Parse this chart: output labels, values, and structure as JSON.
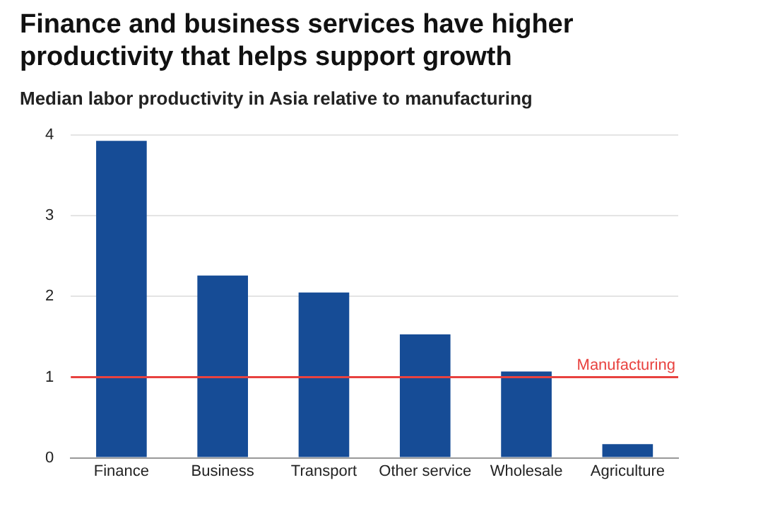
{
  "chart_data": {
    "type": "bar",
    "title": "Finance and business services have higher productivity that helps support growth",
    "subtitle": "Median labor productivity in Asia relative to manufacturing",
    "categories": [
      "Finance",
      "Business",
      "Transport",
      "Other service",
      "Wholesale",
      "Agriculture"
    ],
    "values": [
      3.93,
      2.26,
      2.05,
      1.53,
      1.07,
      0.17
    ],
    "color": "#164c96",
    "ylim": [
      0,
      4
    ],
    "yticks": [
      0,
      1,
      2,
      3,
      4
    ],
    "grid": "y",
    "ref_lines": [
      {
        "axis": "y",
        "value": 1,
        "label": "Manufacturing",
        "color": "#e8423f"
      }
    ]
  }
}
